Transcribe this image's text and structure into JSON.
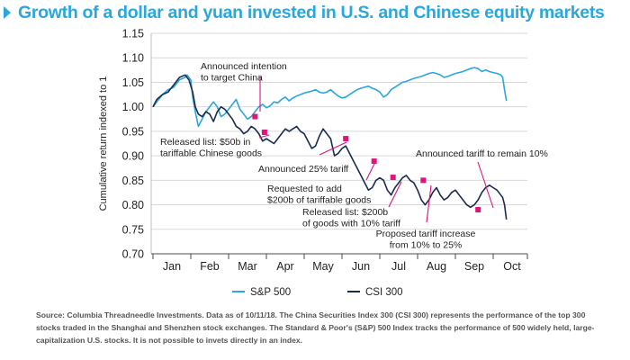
{
  "title": "Growth of a dollar and yuan invested in U.S. and Chinese equity markets",
  "source_note": "Source: Columbia Threadneedle Investments. Data as of 10/11/18. The China Securities Index 300 (CSI 300) represents the performance of the top 300 stocks traded in the Shanghai and Shenzhen stock exchanges. The Standard & Poor's (S&P) 500 Index tracks the performance of 500 widely held, large-capitalization U.S. stocks. It is not possible to invets directly in an index.",
  "colors": {
    "title": "#2aa7dc",
    "sp500": "#2aa7dc",
    "csi300": "#1c2b4f",
    "annotation": "#e0157a",
    "grid": "#d9d9d9"
  },
  "chart_data": {
    "type": "line",
    "ylabel": "Cumulative return indexed to 1",
    "xlabel": "",
    "ylim": [
      0.7,
      1.15
    ],
    "yticks": [
      "0.70",
      "0.75",
      "0.80",
      "0.85",
      "0.90",
      "0.95",
      "1.00",
      "1.05",
      "1.10",
      "1.15"
    ],
    "xlim": [
      0,
      9.35
    ],
    "xticks": [
      "Jan",
      "Feb",
      "Mar",
      "Apr",
      "May",
      "Jun",
      "Jul",
      "Aug",
      "Sep",
      "Oct"
    ],
    "grid": "horizontal",
    "legend_position": "bottom",
    "series": [
      {
        "name": "S&P 500",
        "color": "#2aa7dc",
        "x": [
          0,
          0.1,
          0.25,
          0.4,
          0.55,
          0.7,
          0.85,
          0.9,
          1.0,
          1.05,
          1.12,
          1.2,
          1.3,
          1.4,
          1.5,
          1.6,
          1.7,
          1.8,
          1.9,
          2.0,
          2.1,
          2.2,
          2.3,
          2.4,
          2.5,
          2.6,
          2.7,
          2.8,
          2.9,
          3.0,
          3.1,
          3.2,
          3.3,
          3.4,
          3.5,
          3.6,
          3.7,
          3.8,
          3.9,
          4.0,
          4.1,
          4.2,
          4.3,
          4.4,
          4.5,
          4.6,
          4.7,
          4.8,
          4.9,
          5.0,
          5.1,
          5.2,
          5.3,
          5.4,
          5.5,
          5.6,
          5.7,
          5.8,
          5.9,
          6.0,
          6.1,
          6.2,
          6.3,
          6.4,
          6.5,
          6.6,
          6.7,
          6.8,
          6.9,
          7.0,
          7.1,
          7.2,
          7.3,
          7.4,
          7.5,
          7.6,
          7.7,
          7.8,
          7.9,
          8.0,
          8.1,
          8.2,
          8.3,
          8.4,
          8.5,
          8.6,
          8.7,
          8.8,
          8.9,
          9.0,
          9.1,
          9.2,
          9.25,
          9.3,
          9.35
        ],
        "values": [
          1.0,
          1.01,
          1.025,
          1.035,
          1.04,
          1.055,
          1.06,
          1.065,
          1.055,
          1.02,
          0.99,
          0.96,
          0.975,
          0.99,
          1.0,
          1.01,
          1.0,
          0.98,
          0.985,
          0.995,
          1.005,
          1.015,
          0.995,
          0.985,
          0.975,
          0.98,
          0.99,
          1.0,
          1.005,
          0.998,
          1.002,
          1.01,
          1.008,
          1.015,
          1.02,
          1.012,
          1.018,
          1.022,
          1.025,
          1.028,
          1.03,
          1.032,
          1.035,
          1.03,
          1.028,
          1.03,
          1.035,
          1.028,
          1.022,
          1.018,
          1.02,
          1.025,
          1.03,
          1.035,
          1.038,
          1.04,
          1.042,
          1.038,
          1.035,
          1.03,
          1.02,
          1.025,
          1.035,
          1.04,
          1.045,
          1.05,
          1.052,
          1.055,
          1.058,
          1.06,
          1.062,
          1.065,
          1.068,
          1.07,
          1.068,
          1.065,
          1.06,
          1.062,
          1.065,
          1.068,
          1.07,
          1.072,
          1.075,
          1.078,
          1.08,
          1.078,
          1.072,
          1.075,
          1.072,
          1.07,
          1.068,
          1.065,
          1.06,
          1.035,
          1.012
        ]
      },
      {
        "name": "CSI 300",
        "color": "#1c2b4f",
        "x": [
          0,
          0.1,
          0.25,
          0.4,
          0.55,
          0.7,
          0.85,
          0.95,
          1.05,
          1.12,
          1.2,
          1.3,
          1.4,
          1.5,
          1.6,
          1.7,
          1.8,
          1.9,
          2.0,
          2.1,
          2.2,
          2.3,
          2.4,
          2.5,
          2.6,
          2.7,
          2.8,
          2.9,
          3.0,
          3.1,
          3.2,
          3.3,
          3.4,
          3.5,
          3.6,
          3.7,
          3.8,
          3.9,
          4.0,
          4.1,
          4.2,
          4.3,
          4.4,
          4.5,
          4.6,
          4.7,
          4.8,
          4.9,
          5.0,
          5.1,
          5.2,
          5.3,
          5.4,
          5.5,
          5.6,
          5.7,
          5.8,
          5.9,
          6.0,
          6.1,
          6.2,
          6.3,
          6.4,
          6.5,
          6.6,
          6.7,
          6.8,
          6.9,
          7.0,
          7.1,
          7.2,
          7.3,
          7.4,
          7.5,
          7.6,
          7.7,
          7.8,
          7.9,
          8.0,
          8.1,
          8.2,
          8.3,
          8.4,
          8.5,
          8.6,
          8.7,
          8.8,
          8.9,
          9.0,
          9.1,
          9.2,
          9.25,
          9.3,
          9.35
        ],
        "values": [
          1.0,
          1.015,
          1.025,
          1.03,
          1.045,
          1.06,
          1.065,
          1.055,
          1.03,
          1.0,
          0.985,
          0.98,
          0.99,
          0.985,
          0.97,
          0.99,
          1.0,
          0.995,
          0.985,
          0.975,
          0.96,
          0.955,
          0.945,
          0.95,
          0.96,
          0.955,
          0.945,
          0.93,
          0.935,
          0.93,
          0.925,
          0.935,
          0.945,
          0.955,
          0.95,
          0.955,
          0.96,
          0.95,
          0.945,
          0.93,
          0.915,
          0.92,
          0.94,
          0.955,
          0.945,
          0.935,
          0.9,
          0.905,
          0.915,
          0.92,
          0.905,
          0.89,
          0.875,
          0.86,
          0.845,
          0.83,
          0.835,
          0.85,
          0.855,
          0.85,
          0.83,
          0.82,
          0.835,
          0.845,
          0.855,
          0.86,
          0.85,
          0.845,
          0.83,
          0.81,
          0.8,
          0.81,
          0.825,
          0.835,
          0.82,
          0.81,
          0.815,
          0.825,
          0.83,
          0.82,
          0.81,
          0.8,
          0.795,
          0.8,
          0.81,
          0.825,
          0.835,
          0.84,
          0.835,
          0.83,
          0.82,
          0.815,
          0.8,
          0.77
        ]
      }
    ],
    "annotations": [
      {
        "text": [
          "Announced intention",
          "to target China"
        ],
        "x": 2.7,
        "y": 0.98
      },
      {
        "text": [
          "Released list: $50b in",
          "tariffable Chinese goods"
        ],
        "x": 2.95,
        "y": 0.948
      },
      {
        "text": [
          "Announced 25% tariff"
        ],
        "x": 5.1,
        "y": 0.935
      },
      {
        "text": [
          "Requested to add",
          "$200b of tariffable goods"
        ],
        "x": 5.85,
        "y": 0.889
      },
      {
        "text": [
          "Released list: $200b",
          "of goods with 10% tariff"
        ],
        "x": 6.35,
        "y": 0.856
      },
      {
        "text": [
          "Proposed tariff increase",
          "from 10% to 25%"
        ],
        "x": 7.15,
        "y": 0.85
      },
      {
        "text": [
          "Announced tariff to remain 10%"
        ],
        "x": 8.6,
        "y": 0.79
      }
    ]
  }
}
